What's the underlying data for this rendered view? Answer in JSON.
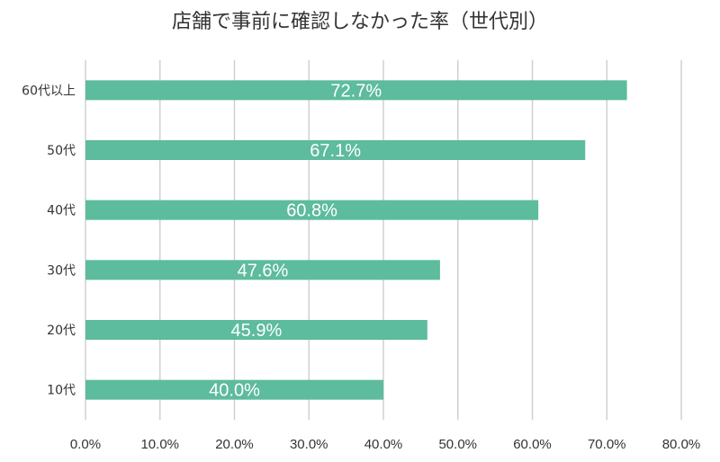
{
  "chart_data": {
    "type": "bar",
    "orientation": "horizontal",
    "title": "店舗で事前に確認しなかった率（世代別）",
    "categories": [
      "60代以上",
      "50代",
      "40代",
      "30代",
      "20代",
      "10代"
    ],
    "values": [
      72.7,
      67.1,
      60.8,
      47.6,
      45.9,
      40.0
    ],
    "value_labels": [
      "72.7%",
      "67.1%",
      "60.8%",
      "47.6%",
      "45.9%",
      "40.0%"
    ],
    "xlim": [
      0,
      80
    ],
    "x_ticks": [
      0,
      10,
      20,
      30,
      40,
      50,
      60,
      70,
      80
    ],
    "x_tick_labels": [
      "0.0%",
      "10.0%",
      "20.0%",
      "30.0%",
      "40.0%",
      "50.0%",
      "60.0%",
      "70.0%",
      "80.0%"
    ],
    "xlabel": "",
    "ylabel": "",
    "grid": "vertical",
    "legend": "none",
    "colors": {
      "bar": "#5dbb9e",
      "grid": "#d0d0d0",
      "text": "#333333",
      "data_label": "#ffffff"
    }
  }
}
